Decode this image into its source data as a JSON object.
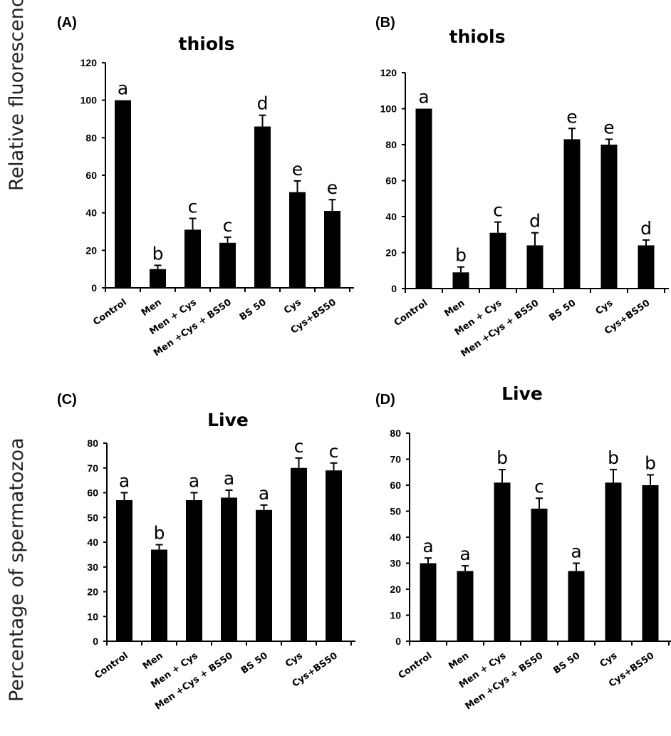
{
  "figure": {
    "ylabel_top": "Relative fluorescence units",
    "ylabel_bottom": "Percentage of spermatozoa"
  },
  "chart_data": [
    {
      "panel": "(A)",
      "type": "bar",
      "title": "thiols",
      "categories": [
        "Control",
        "Men",
        "Men + Cys",
        "Men +Cys + BS50",
        "BS 50",
        "Cys",
        "Cys+BS50"
      ],
      "values": [
        100,
        10,
        31,
        24,
        86,
        51,
        41
      ],
      "errors": [
        0,
        2,
        6,
        3,
        6,
        6,
        6
      ],
      "letters": [
        "a",
        "b",
        "c",
        "c",
        "d",
        "e",
        "e"
      ],
      "ylim": [
        0,
        120
      ],
      "yticks": [
        0,
        20,
        40,
        60,
        80,
        100,
        120
      ],
      "grid": false,
      "color": "#000000"
    },
    {
      "panel": "(B)",
      "type": "bar",
      "title": "thiols",
      "categories": [
        "Control",
        "Men",
        "Men + Cys",
        "Men +Cys + BS50",
        "BS 50",
        "Cys",
        "Cys+BS50"
      ],
      "values": [
        100,
        9,
        31,
        24,
        83,
        80,
        24
      ],
      "errors": [
        0,
        3,
        6,
        7,
        6,
        3,
        3
      ],
      "letters": [
        "a",
        "b",
        "c",
        "d",
        "e",
        "e",
        "d"
      ],
      "ylim": [
        0,
        120
      ],
      "yticks": [
        0,
        20,
        40,
        60,
        80,
        100,
        120
      ],
      "grid": false,
      "color": "#000000"
    },
    {
      "panel": "(C)",
      "type": "bar",
      "title": "Live",
      "categories": [
        "Control",
        "Men",
        "Men + Cys",
        "Men +Cys + BS50",
        "BS 50",
        "Cys",
        "Cys+BS50"
      ],
      "values": [
        57,
        37,
        57,
        58,
        53,
        70,
        69
      ],
      "errors": [
        3,
        2,
        3,
        3,
        2,
        4,
        3
      ],
      "letters": [
        "a",
        "b",
        "a",
        "a",
        "a",
        "c",
        "c"
      ],
      "ylim": [
        0,
        80
      ],
      "yticks": [
        0,
        10,
        20,
        30,
        40,
        50,
        60,
        70,
        80
      ],
      "grid": false,
      "color": "#000000"
    },
    {
      "panel": "(D)",
      "type": "bar",
      "title": "Live",
      "categories": [
        "Control",
        "Men",
        "Men + Cys",
        "Men +Cys + BS50",
        "BS 50",
        "Cys",
        "Cys+BS50"
      ],
      "values": [
        30,
        27,
        61,
        51,
        27,
        61,
        60
      ],
      "errors": [
        2,
        2,
        5,
        4,
        3,
        5,
        4
      ],
      "letters": [
        "a",
        "a",
        "b",
        "c",
        "a",
        "b",
        "b"
      ],
      "ylim": [
        0,
        80
      ],
      "yticks": [
        0,
        10,
        20,
        30,
        40,
        50,
        60,
        70,
        80
      ],
      "grid": false,
      "color": "#000000"
    }
  ]
}
